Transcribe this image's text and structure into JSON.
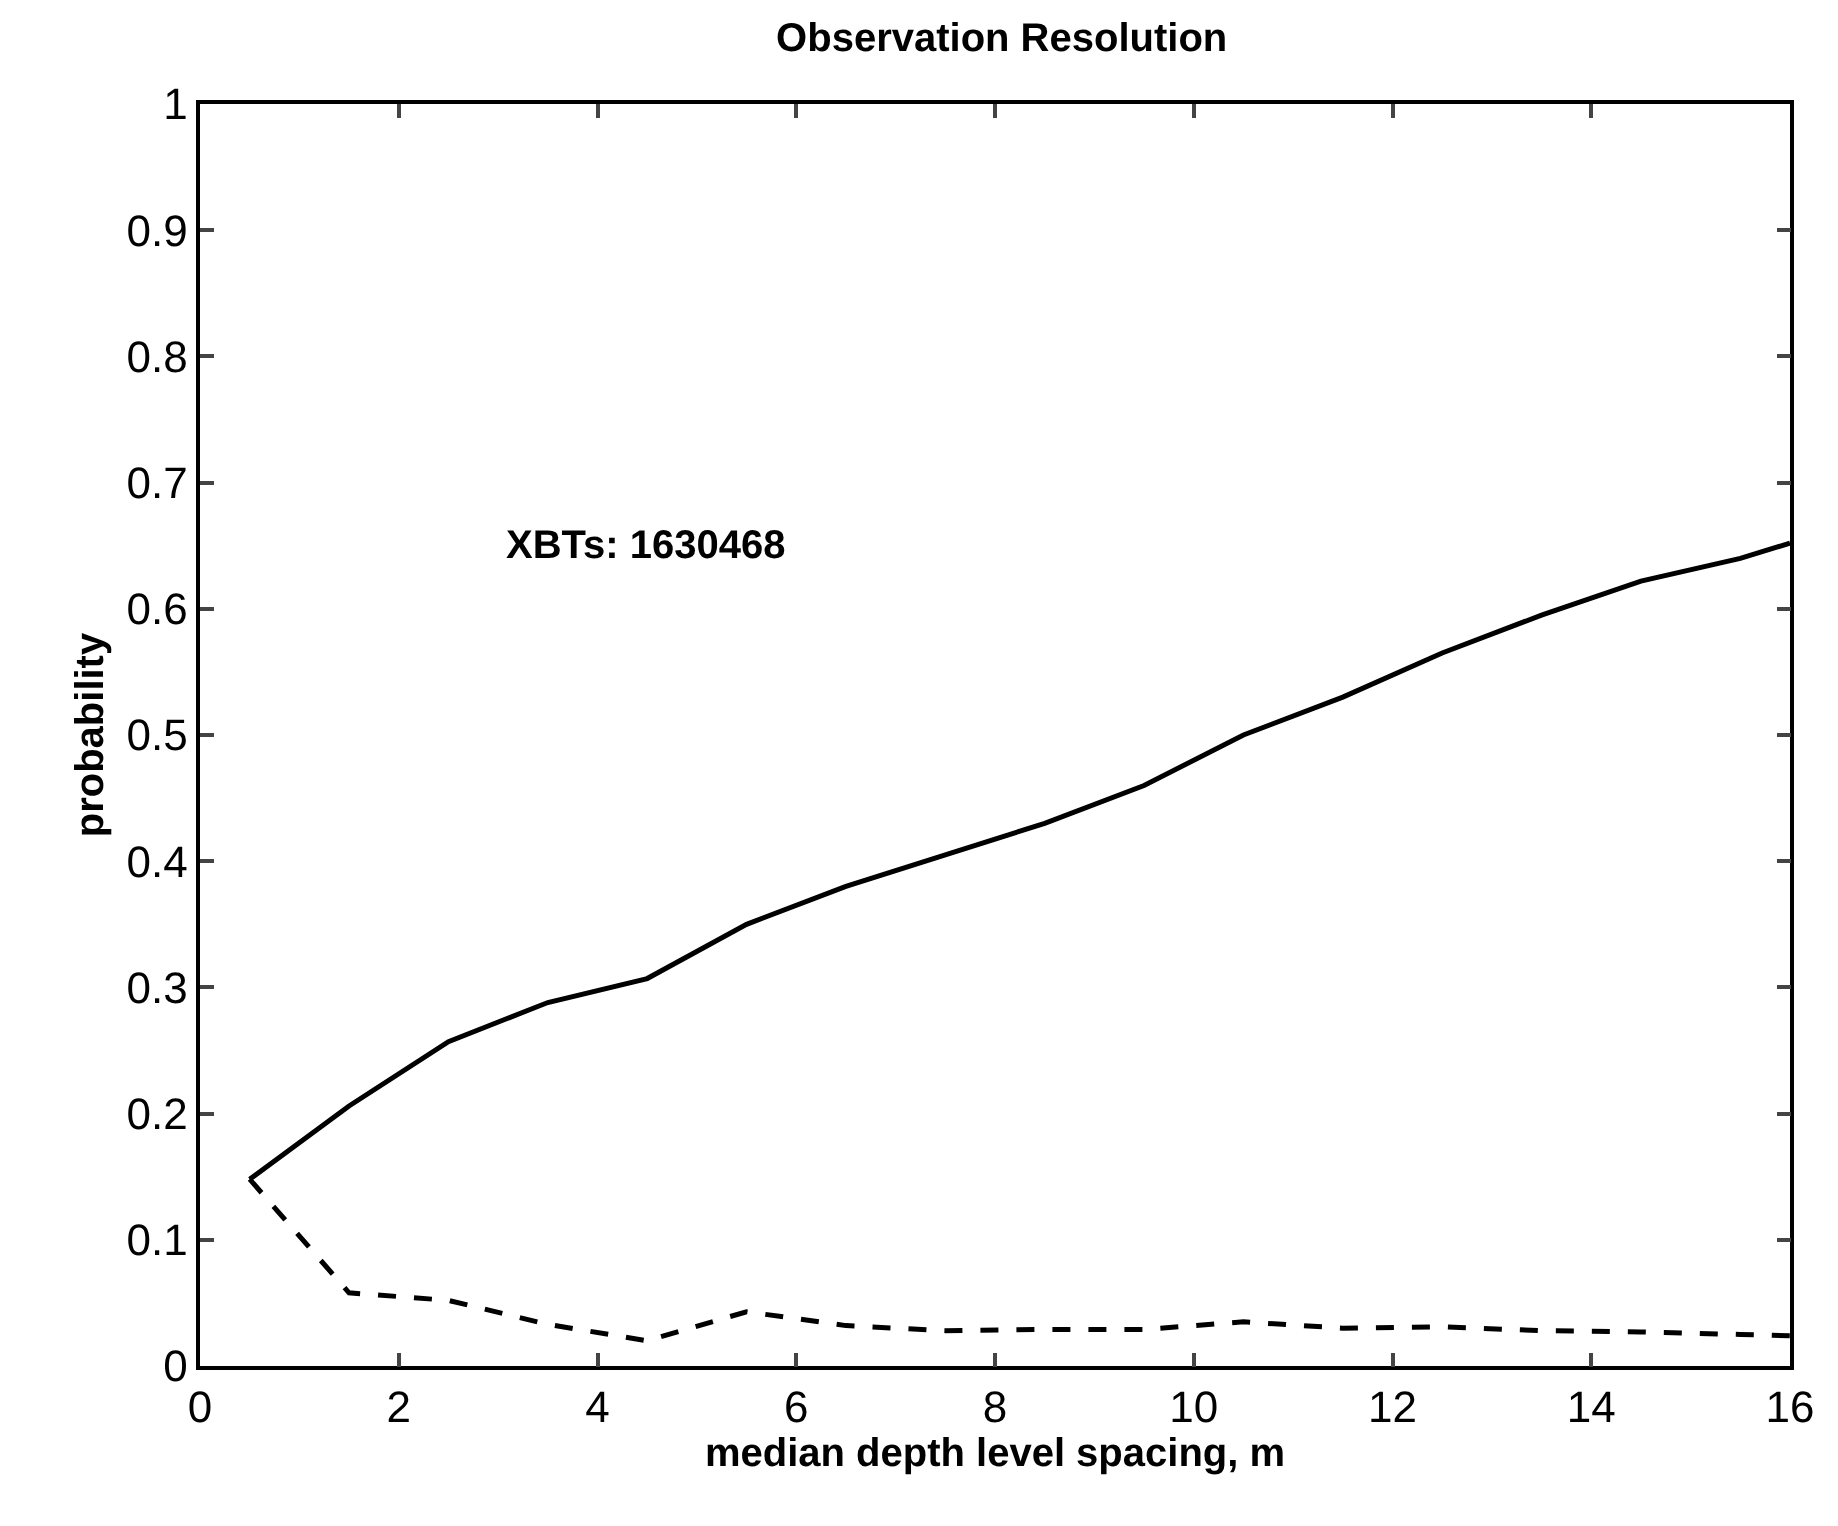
{
  "chart_data": {
    "type": "line",
    "title": "Observation Resolution",
    "xlabel": "median depth level spacing, m",
    "ylabel": "probability",
    "x": [
      0.5,
      1.5,
      2.5,
      3.5,
      4.5,
      5.5,
      6.5,
      7.5,
      8.5,
      9.5,
      10.5,
      11.5,
      12.5,
      13.5,
      14.5,
      15.5,
      16
    ],
    "series": [
      {
        "color": "#000000",
        "line_style": "solid",
        "values": [
          0.148,
          0.206,
          0.257,
          0.288,
          0.307,
          0.35,
          0.38,
          0.405,
          0.43,
          0.46,
          0.5,
          0.53,
          0.565,
          0.595,
          0.622,
          0.64,
          0.652
        ]
      },
      {
        "color": "#000000",
        "line_style": "dashed",
        "values": [
          0.148,
          0.058,
          0.052,
          0.033,
          0.02,
          0.043,
          0.032,
          0.028,
          0.029,
          0.029,
          0.035,
          0.03,
          0.031,
          0.028,
          0.027,
          0.025,
          0.024
        ]
      }
    ],
    "annotations": [
      "XBTs: 1630468"
    ],
    "xlim": [
      0,
      16
    ],
    "xticks": [
      0,
      2,
      4,
      6,
      8,
      10,
      12,
      14,
      16
    ],
    "ylim": [
      0,
      1
    ],
    "yticks": [
      0,
      0.1,
      0.2,
      0.3,
      0.4,
      0.5,
      0.6,
      0.7,
      0.8,
      0.9,
      1
    ],
    "marker": "none"
  }
}
